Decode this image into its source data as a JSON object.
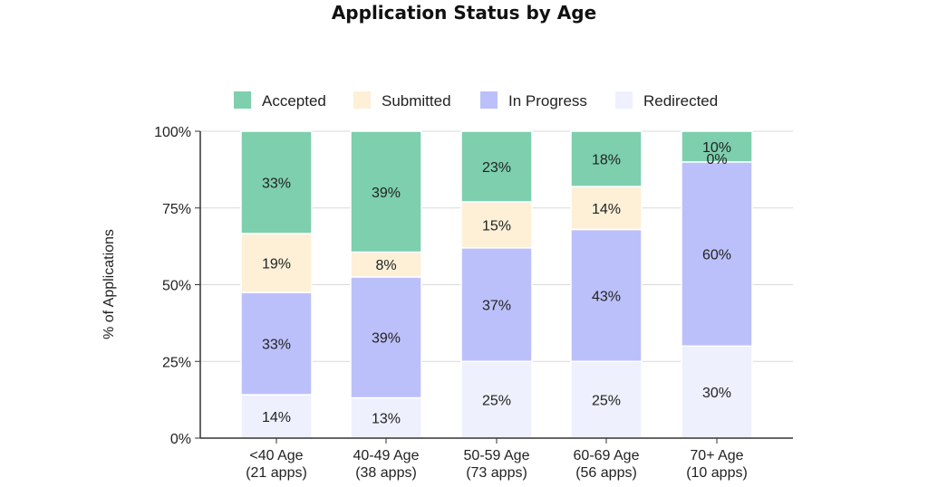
{
  "chart_data": {
    "type": "bar",
    "stacked": true,
    "title": "Application Status by Age",
    "ylabel": "% of Applications",
    "xlabel": "",
    "ylim": [
      0,
      100
    ],
    "yticks": [
      "0%",
      "25%",
      "50%",
      "75%",
      "100%"
    ],
    "grid": true,
    "legend_position": "top",
    "categories": [
      [
        "<40 Age",
        "(21 apps)"
      ],
      [
        "40-49 Age",
        "(38 apps)"
      ],
      [
        "50-59 Age",
        "(73 apps)"
      ],
      [
        "60-69 Age",
        "(56 apps)"
      ],
      [
        "70+ Age",
        "(10 apps)"
      ]
    ],
    "series": [
      {
        "name": "Accepted",
        "color": "#7dcfae",
        "values": [
          33,
          39,
          23,
          18,
          10
        ],
        "labels": [
          "33%",
          "39%",
          "23%",
          "18%",
          "10%"
        ]
      },
      {
        "name": "Submitted",
        "color": "#fdf0d7",
        "values": [
          19,
          8,
          15,
          14,
          0
        ],
        "labels": [
          "19%",
          "8%",
          "15%",
          "14%",
          "0%"
        ]
      },
      {
        "name": "In Progress",
        "color": "#bcc0fa",
        "values": [
          33,
          39,
          37,
          43,
          60
        ],
        "labels": [
          "33%",
          "39%",
          "37%",
          "43%",
          "60%"
        ]
      },
      {
        "name": "Redirected",
        "color": "#eef0fe",
        "values": [
          14,
          13,
          25,
          25,
          30
        ],
        "labels": [
          "14%",
          "13%",
          "25%",
          "25%",
          "30%"
        ]
      }
    ]
  }
}
